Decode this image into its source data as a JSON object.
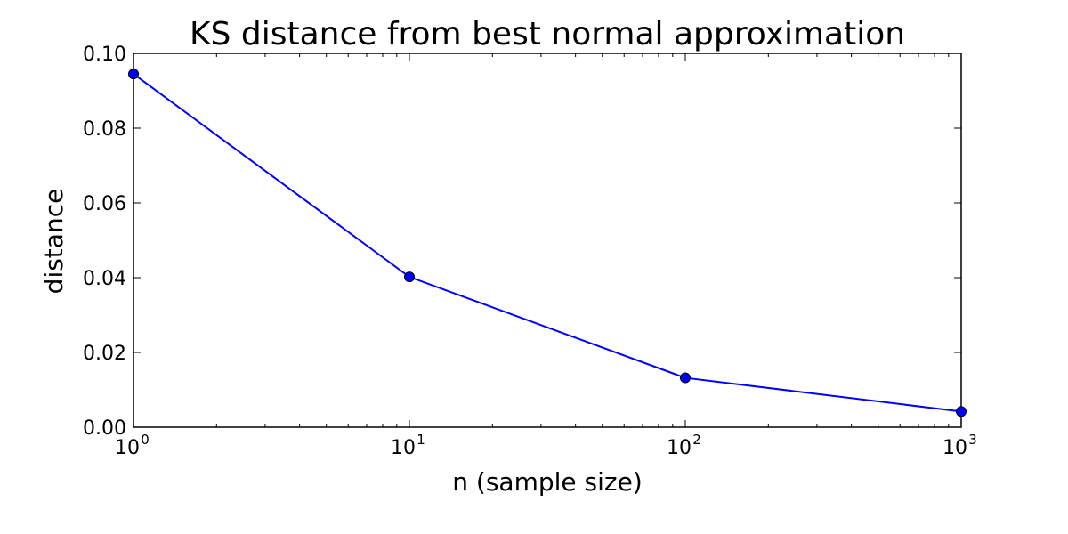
{
  "chart_data": {
    "type": "line",
    "title": "KS distance from best normal approximation",
    "xlabel": "n  (sample size)",
    "ylabel": "distance",
    "x_scale": "log",
    "xlim": [
      1,
      1000
    ],
    "ylim": [
      0.0,
      0.1
    ],
    "x_ticks": [
      {
        "value": 1,
        "base": "10",
        "exp": "0"
      },
      {
        "value": 10,
        "base": "10",
        "exp": "1"
      },
      {
        "value": 100,
        "base": "10",
        "exp": "2"
      },
      {
        "value": 1000,
        "base": "10",
        "exp": "3"
      }
    ],
    "y_ticks": [
      {
        "value": 0.0,
        "label": "0.00"
      },
      {
        "value": 0.02,
        "label": "0.02"
      },
      {
        "value": 0.04,
        "label": "0.04"
      },
      {
        "value": 0.06,
        "label": "0.06"
      },
      {
        "value": 0.08,
        "label": "0.08"
      },
      {
        "value": 0.1,
        "label": "0.10"
      }
    ],
    "grid": false,
    "series": [
      {
        "x": [
          1,
          10,
          100,
          1000
        ],
        "values": [
          0.0945,
          0.0402,
          0.0132,
          0.0042
        ],
        "color": "#0000ff",
        "marker": "circle"
      }
    ]
  }
}
